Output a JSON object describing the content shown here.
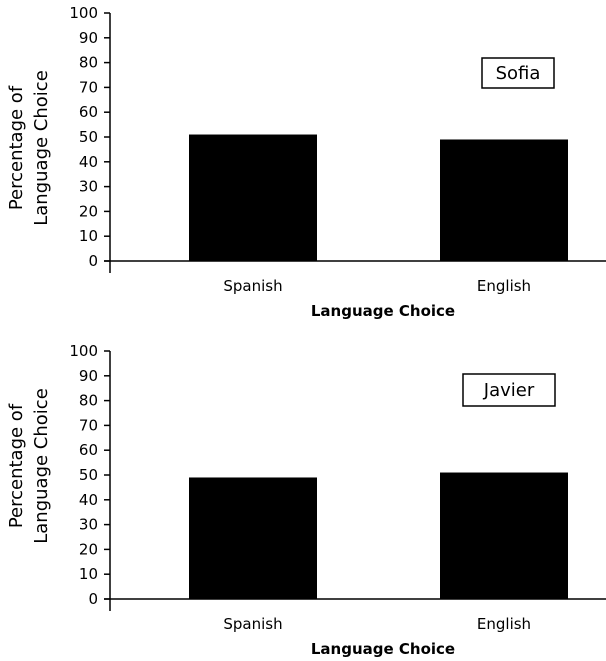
{
  "chart_data": [
    {
      "type": "bar",
      "categories": [
        "Spanish",
        "English"
      ],
      "series": [
        {
          "name": "Sofia",
          "values": [
            51,
            49
          ]
        }
      ],
      "title": "",
      "xlabel": "Language Choice",
      "ylabel_lines": [
        "Percentage of",
        "Language Choice"
      ],
      "ylim": [
        0,
        100
      ],
      "yticks": [
        "0",
        "10",
        "20",
        "30",
        "40",
        "50",
        "60",
        "70",
        "80",
        "90",
        "100"
      ],
      "grid": false,
      "legend": "top-right",
      "bar_color": "#000000"
    },
    {
      "type": "bar",
      "categories": [
        "Spanish",
        "English"
      ],
      "series": [
        {
          "name": "Javier",
          "values": [
            49,
            51
          ]
        }
      ],
      "title": "",
      "xlabel": "Language Choice",
      "ylabel_lines": [
        "Percentage of",
        "Language Choice"
      ],
      "ylim": [
        0,
        100
      ],
      "yticks": [
        "0",
        "10",
        "20",
        "30",
        "40",
        "50",
        "60",
        "70",
        "80",
        "90",
        "100"
      ],
      "grid": false,
      "legend": "top-right",
      "bar_color": "#000000"
    }
  ]
}
